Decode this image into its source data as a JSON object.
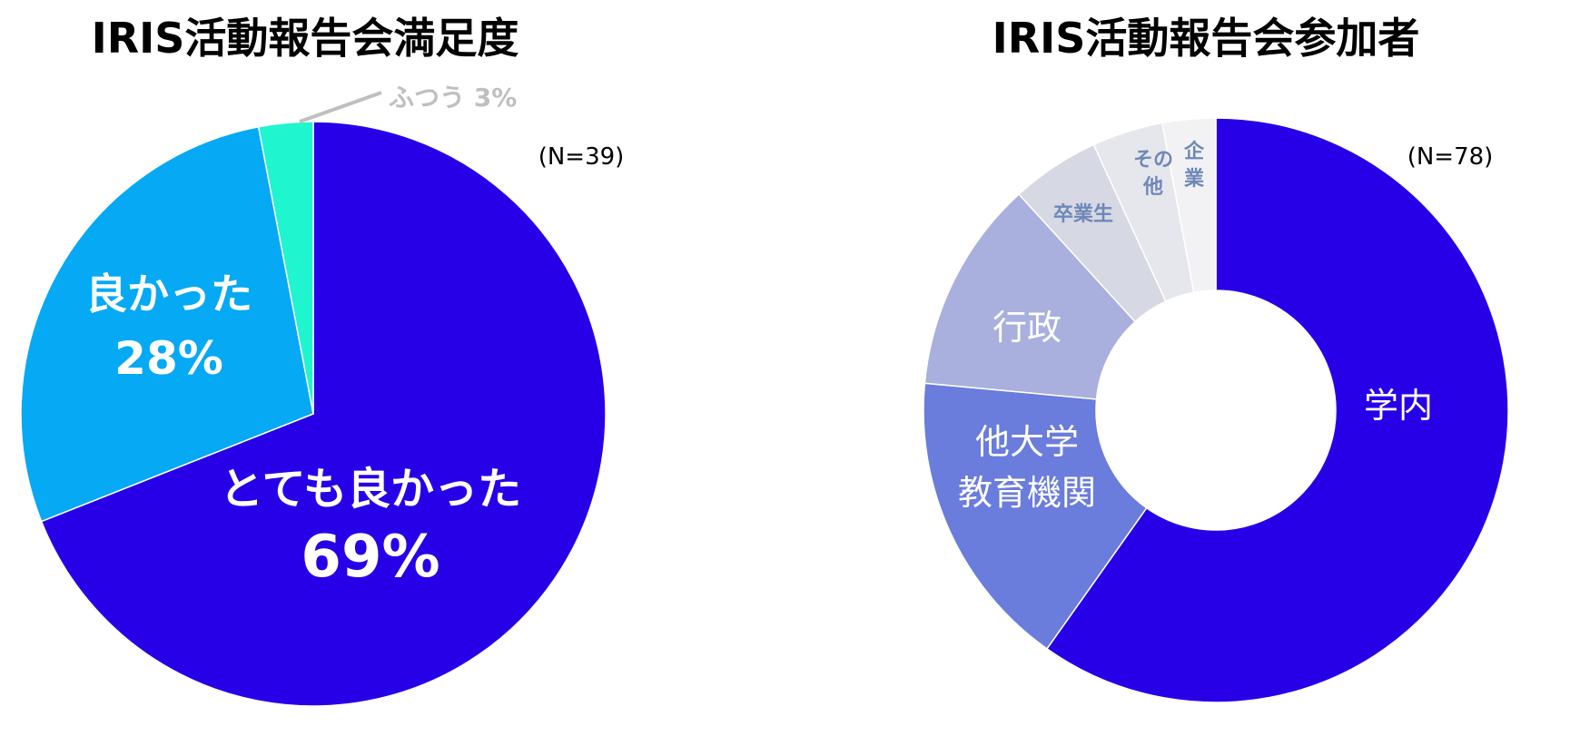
{
  "chart_data": [
    {
      "type": "pie",
      "title": "IRIS活動報告会満足度",
      "note": "(N=39)",
      "slices": [
        {
          "label": "とても良かった",
          "value": 69,
          "value_label": "69%",
          "color": "#2700e8"
        },
        {
          "label": "良かった",
          "value": 28,
          "value_label": "28%",
          "color": "#05a9f4"
        },
        {
          "label": "ふつう",
          "value": 3,
          "value_label": "3%",
          "color": "#1ff5cf"
        }
      ],
      "leader_label": "ふつう 3%",
      "leader_label_color": "#bfbfbf"
    },
    {
      "type": "pie",
      "subtype": "donut",
      "title": "IRIS活動報告会参加者",
      "note": "(N=78)",
      "slices": [
        {
          "label": "学内",
          "value": 61,
          "color": "#2700e8"
        },
        {
          "label": "他大学教育機関",
          "label_lines": [
            "他大学",
            "教育機関"
          ],
          "value": 17,
          "color": "#6a7cdc"
        },
        {
          "label": "行政",
          "value": 12,
          "color": "#a9b0de"
        },
        {
          "label": "卒業生",
          "value": 5,
          "color": "#d6d8e3"
        },
        {
          "label": "その他",
          "label_lines": [
            "その",
            "他"
          ],
          "value": 4,
          "color": "#e6e7ec"
        },
        {
          "label": "企業",
          "label_lines": [
            "企",
            "業"
          ],
          "value": 3,
          "color": "#f2f2f4"
        }
      ],
      "small_label_color": "#6e88b8"
    }
  ]
}
